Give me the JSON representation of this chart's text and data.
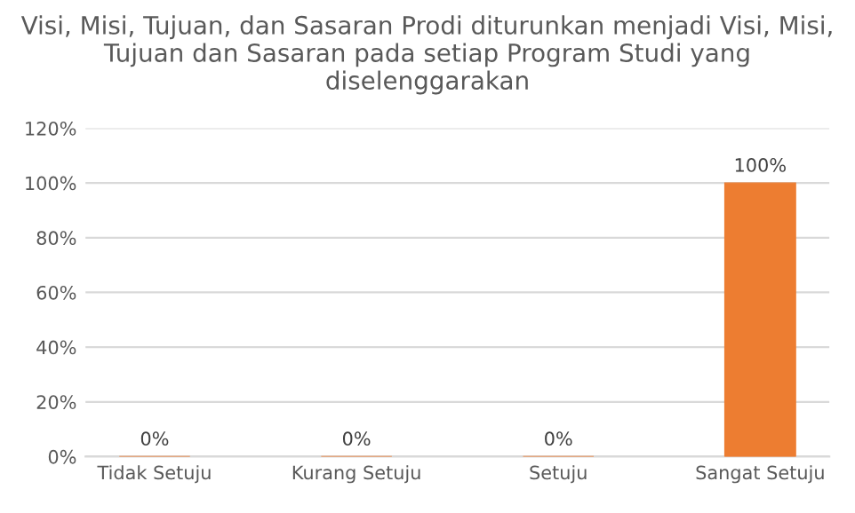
{
  "chart_data": {
    "type": "bar",
    "title": "Visi, Misi, Tujuan, dan Sasaran Prodi diturunkan menjadi Visi, Misi, Tujuan dan Sasaran pada setiap Program Studi yang diselenggarakan",
    "categories": [
      "Tidak Setuju",
      "Kurang Setuju",
      "Setuju",
      "Sangat Setuju"
    ],
    "values": [
      0,
      0,
      0,
      100
    ],
    "color": "#ed7d31",
    "value_labels": [
      "0%",
      "0%",
      "0%",
      "100%"
    ],
    "ylim": [
      0,
      120
    ],
    "yticks": [
      {
        "value": 0,
        "label": "0%"
      },
      {
        "value": 20,
        "label": "20%"
      },
      {
        "value": 40,
        "label": "40%"
      },
      {
        "value": 60,
        "label": "60%"
      },
      {
        "value": 80,
        "label": "80%"
      },
      {
        "value": 100,
        "label": "100%"
      },
      {
        "value": 120,
        "label": "120%"
      }
    ],
    "grid": "y",
    "legend": false
  }
}
